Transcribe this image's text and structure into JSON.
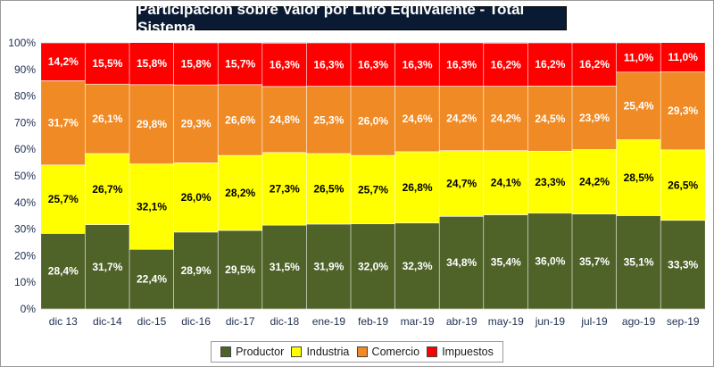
{
  "colors": {
    "Productor": "#4f6228",
    "Industria": "#ffff00",
    "Comercio": "#f08a24",
    "Impuestos": "#ff0000"
  },
  "chart_data": {
    "type": "bar",
    "stacked": true,
    "title": "Participación sobre Valor por Litro Equivalente - Total Sistema",
    "xlabel": "",
    "ylabel": "",
    "ylim": [
      0,
      100
    ],
    "yticks": [
      "0%",
      "10%",
      "20%",
      "30%",
      "40%",
      "50%",
      "60%",
      "70%",
      "80%",
      "90%",
      "100%"
    ],
    "grid": true,
    "legend_position": "bottom",
    "categories": [
      "dic 13",
      "dic-14",
      "dic-15",
      "dic-16",
      "dic-17",
      "dic-18",
      "ene-19",
      "feb-19",
      "mar-19",
      "abr-19",
      "may-19",
      "jun-19",
      "jul-19",
      "ago-19",
      "sep-19"
    ],
    "series": [
      {
        "name": "Productor",
        "values": [
          28.4,
          31.7,
          22.4,
          28.9,
          29.5,
          31.5,
          31.9,
          32.0,
          32.3,
          34.8,
          35.4,
          36.0,
          35.7,
          35.1,
          33.3
        ],
        "labels": [
          "28,4%",
          "31,7%",
          "22,4%",
          "28,9%",
          "29,5%",
          "31,5%",
          "31,9%",
          "32,0%",
          "32,3%",
          "34,8%",
          "35,4%",
          "36,0%",
          "35,7%",
          "35,1%",
          "33,3%"
        ]
      },
      {
        "name": "Industria",
        "values": [
          25.7,
          26.7,
          32.1,
          26.0,
          28.2,
          27.3,
          26.5,
          25.7,
          26.8,
          24.7,
          24.1,
          23.3,
          24.2,
          28.5,
          26.5
        ],
        "labels": [
          "25,7%",
          "26,7%",
          "32,1%",
          "26,0%",
          "28,2%",
          "27,3%",
          "26,5%",
          "25,7%",
          "26,8%",
          "24,7%",
          "24,1%",
          "23,3%",
          "24,2%",
          "28,5%",
          "26,5%"
        ]
      },
      {
        "name": "Comercio",
        "values": [
          31.7,
          26.1,
          29.8,
          29.3,
          26.6,
          24.8,
          25.3,
          26.0,
          24.6,
          24.2,
          24.2,
          24.5,
          23.9,
          25.4,
          29.3
        ],
        "labels": [
          "31,7%",
          "26,1%",
          "29,8%",
          "29,3%",
          "26,6%",
          "24,8%",
          "25,3%",
          "26,0%",
          "24,6%",
          "24,2%",
          "24,2%",
          "24,5%",
          "23,9%",
          "25,4%",
          "29,3%"
        ]
      },
      {
        "name": "Impuestos",
        "values": [
          14.2,
          15.5,
          15.8,
          15.8,
          15.7,
          16.3,
          16.3,
          16.3,
          16.3,
          16.3,
          16.2,
          16.2,
          16.2,
          11.0,
          11.0
        ],
        "labels": [
          "14,2%",
          "15,5%",
          "15,8%",
          "15,8%",
          "15,7%",
          "16,3%",
          "16,3%",
          "16,3%",
          "16,3%",
          "16,3%",
          "16,2%",
          "16,2%",
          "16,2%",
          "11,0%",
          "11,0%"
        ]
      }
    ]
  }
}
